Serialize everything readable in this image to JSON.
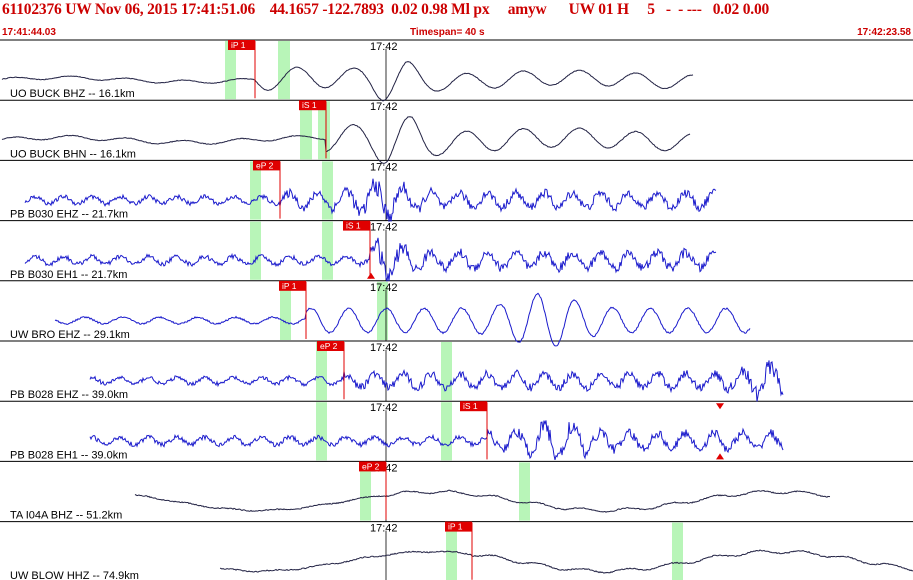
{
  "header": {
    "event_line": "61102376 UW Nov 06, 2015 17:41:51.06    44.1657 -122.7893  0.02 0.98 Ml px     amyw      UW 01 H     5   -  - ---   0.02 0.00",
    "start_time": "17:41:44.03",
    "timespan": "Timespan=  40 s",
    "end_time": "17:42:23.58"
  },
  "colors": {
    "trace_black": "#222244",
    "trace_blue": "#1a1acc",
    "pick_flag": "#e00000",
    "window_green": "#b8f5b8",
    "header_red": "#cc0000"
  },
  "time_mark": "17:42",
  "panels": [
    {
      "label": "UO BUCK BHZ -- 16.1km",
      "pick": "iP 1",
      "color": "black"
    },
    {
      "label": "UO BUCK BHN -- 16.1km",
      "pick": "iS 1",
      "color": "black"
    },
    {
      "label": "PB B030 EHZ -- 21.7km",
      "pick": "eP 2",
      "color": "blue"
    },
    {
      "label": "PB B030 EH1 -- 21.7km",
      "pick": "iS 1",
      "color": "blue"
    },
    {
      "label": "UW BRO EHZ -- 29.1km",
      "pick": "iP 1",
      "color": "blue"
    },
    {
      "label": "PB B028 EHZ -- 39.0km",
      "pick": "eP 2",
      "color": "blue"
    },
    {
      "label": "PB B028 EH1 -- 39.0km",
      "pick": "iS 1",
      "color": "blue"
    },
    {
      "label": "TA I04A BHZ -- 51.2km",
      "pick": "eP 2",
      "color": "black"
    },
    {
      "label": "UW BLOW HHZ -- 74.9km",
      "pick": "iP 1",
      "color": "black"
    }
  ]
}
